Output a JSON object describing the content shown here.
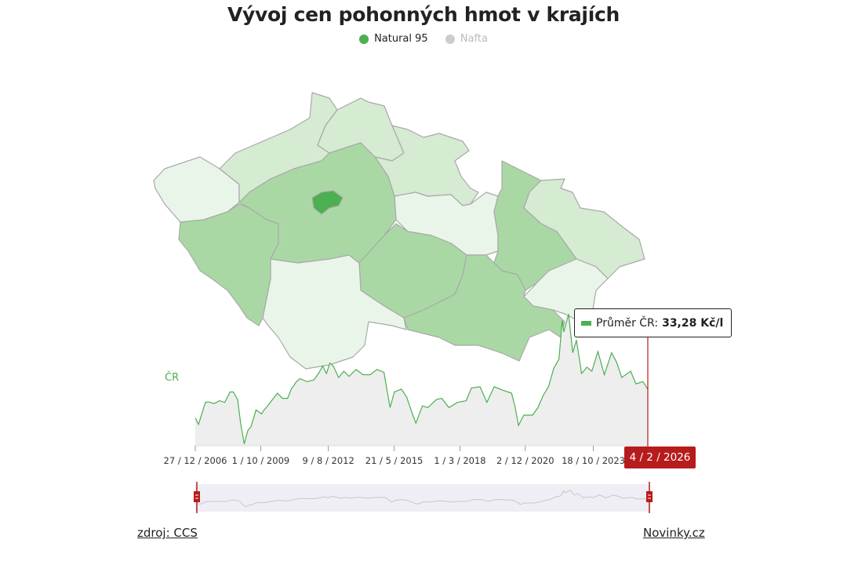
{
  "title": "Vývoj cen pohonných hmot v krajích",
  "legend": [
    {
      "label": "Natural 95",
      "color": "#4caf50",
      "active": true
    },
    {
      "label": "Nafta",
      "color": "#cccccc",
      "active": false
    }
  ],
  "map": {
    "region_colors": {
      "karlovarsky": "#eaf5e9",
      "ustecky": "#d5ebd2",
      "liberecky": "#d5ebd2",
      "kralovehradecky": "#d5ebd2",
      "pardubicky": "#eaf5e9",
      "olomoucky": "#a9d8a4",
      "moravskoslezsky": "#d5ebd2",
      "zlinsky": "#eaf5e9",
      "jihomoravsky": "#a9d8a4",
      "vysocina": "#a9d8a4",
      "jihocesky": "#eaf5e9",
      "plzensky": "#a9d8a4",
      "stredocesky": "#a9d8a4",
      "praha": "#4caf50"
    },
    "border_color": "#a9a9a9"
  },
  "series_label": "ČR",
  "tooltip": {
    "label": "Průměr ČR:",
    "value": "33,28 Kč/l"
  },
  "selected_date": "4 / 2 / 2026",
  "chart_data": {
    "type": "area",
    "series": [
      {
        "name": "ČR",
        "color": "#4caf50",
        "points": [
          [
            "2006-12-27",
            28.3
          ],
          [
            "2007-02-15",
            27.2
          ],
          [
            "2007-06-01",
            31.0
          ],
          [
            "2007-07-15",
            31.1
          ],
          [
            "2007-10-15",
            30.8
          ],
          [
            "2008-01-05",
            31.3
          ],
          [
            "2008-03-25",
            31.0
          ],
          [
            "2008-06-15",
            32.8
          ],
          [
            "2008-08-05",
            32.8
          ],
          [
            "2008-10-10",
            31.5
          ],
          [
            "2008-11-25",
            27.4
          ],
          [
            "2009-01-20",
            23.8
          ],
          [
            "2009-03-15",
            26.1
          ],
          [
            "2009-05-05",
            26.8
          ],
          [
            "2009-07-20",
            29.7
          ],
          [
            "2009-10-15",
            29.0
          ],
          [
            "2009-11-10",
            29.5
          ],
          [
            "2010-01-30",
            30.6
          ],
          [
            "2010-06-15",
            32.6
          ],
          [
            "2010-09-01",
            31.7
          ],
          [
            "2010-11-20",
            31.7
          ],
          [
            "2011-01-15",
            33.3
          ],
          [
            "2011-04-05",
            34.6
          ],
          [
            "2011-05-30",
            35.1
          ],
          [
            "2011-09-15",
            34.6
          ],
          [
            "2012-01-01",
            34.9
          ],
          [
            "2012-03-20",
            36.2
          ],
          [
            "2012-05-15",
            37.3
          ],
          [
            "2012-07-10",
            36.0
          ],
          [
            "2012-09-01",
            37.8
          ],
          [
            "2012-10-25",
            37.3
          ],
          [
            "2013-01-15",
            35.3
          ],
          [
            "2013-04-05",
            36.4
          ],
          [
            "2013-06-25",
            35.5
          ],
          [
            "2013-10-10",
            36.7
          ],
          [
            "2014-01-25",
            35.8
          ],
          [
            "2014-05-15",
            35.8
          ],
          [
            "2014-08-30",
            36.7
          ],
          [
            "2014-12-15",
            36.2
          ],
          [
            "2015-02-05",
            32.8
          ],
          [
            "2015-03-20",
            30.1
          ],
          [
            "2015-05-25",
            32.8
          ],
          [
            "2015-09-10",
            33.3
          ],
          [
            "2015-12-01",
            31.9
          ],
          [
            "2016-02-20",
            29.2
          ],
          [
            "2016-04-20",
            27.4
          ],
          [
            "2016-07-30",
            30.4
          ],
          [
            "2016-10-20",
            30.1
          ],
          [
            "2017-03-05",
            31.5
          ],
          [
            "2017-05-25",
            31.7
          ],
          [
            "2017-09-10",
            30.1
          ],
          [
            "2018-01-20",
            31.0
          ],
          [
            "2018-06-05",
            31.3
          ],
          [
            "2018-08-25",
            33.5
          ],
          [
            "2019-01-05",
            33.7
          ],
          [
            "2019-04-20",
            31.0
          ],
          [
            "2019-08-10",
            33.7
          ],
          [
            "2019-12-25",
            33.1
          ],
          [
            "2020-05-05",
            32.6
          ],
          [
            "2020-07-01",
            30.1
          ],
          [
            "2020-08-20",
            27.0
          ],
          [
            "2020-11-10",
            28.8
          ],
          [
            "2021-03-25",
            28.8
          ],
          [
            "2021-06-15",
            30.1
          ],
          [
            "2021-09-05",
            32.2
          ],
          [
            "2021-11-25",
            33.7
          ],
          [
            "2022-02-15",
            36.9
          ],
          [
            "2022-05-05",
            38.5
          ],
          [
            "2022-06-25",
            45.2
          ],
          [
            "2022-07-20",
            43.2
          ],
          [
            "2022-10-01",
            46.3
          ],
          [
            "2022-12-05",
            39.6
          ],
          [
            "2023-01-30",
            41.8
          ],
          [
            "2023-04-20",
            36.0
          ],
          [
            "2023-07-10",
            37.1
          ],
          [
            "2023-09-25",
            36.4
          ],
          [
            "2023-12-28",
            39.8
          ],
          [
            "2024-04-05",
            35.8
          ],
          [
            "2024-07-25",
            39.6
          ],
          [
            "2024-10-10",
            38.0
          ],
          [
            "2024-12-30",
            35.3
          ],
          [
            "2025-05-15",
            36.4
          ],
          [
            "2025-08-05",
            34.2
          ],
          [
            "2025-11-20",
            34.6
          ],
          [
            "2026-02-04",
            33.28
          ]
        ]
      }
    ],
    "x_ticks": [
      "27 / 12 / 2006",
      "1 / 10 / 2009",
      "9 / 8 / 2012",
      "21 / 5 / 2015",
      "1 / 3 / 2018",
      "2 / 12 / 2020",
      "18 / 10 / 2023"
    ],
    "x_tick_dates": [
      "2006-12-27",
      "2009-10-01",
      "2012-08-09",
      "2015-05-21",
      "2018-03-01",
      "2020-12-02",
      "2023-10-18"
    ],
    "xlim": [
      "2006-12-27",
      "2026-02-04"
    ],
    "ylim": [
      23.5,
      47
    ],
    "grid": false,
    "y_axis_labels": false,
    "area_color": "#eeeeee",
    "cursor_color": "#b71c1c"
  },
  "footer": {
    "source": "zdroj: CCS",
    "brand": "Novinky.cz"
  }
}
